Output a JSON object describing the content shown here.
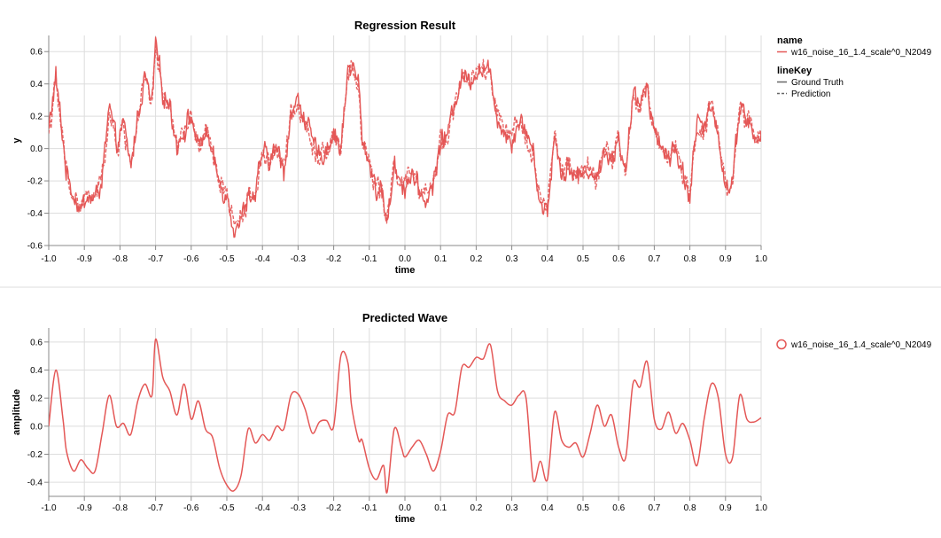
{
  "colors": {
    "series": "#e45756",
    "grid": "#dddddd",
    "axis": "#888888",
    "legend_line": "#666666"
  },
  "chart_data": [
    {
      "type": "line",
      "title": "Regression Result",
      "xlabel": "time",
      "ylabel": "y",
      "xlim": [
        -1.0,
        1.0
      ],
      "ylim": [
        -0.6,
        0.7
      ],
      "x_ticks": [
        -1.0,
        -0.9,
        -0.8,
        -0.7,
        -0.6,
        -0.5,
        -0.4,
        -0.3,
        -0.2,
        -0.1,
        0.0,
        0.1,
        0.2,
        0.3,
        0.4,
        0.5,
        0.6,
        0.7,
        0.8,
        0.9,
        1.0
      ],
      "x_tick_labels": [
        "-1.0",
        "-0.9",
        "-0.8",
        "-0.7",
        "-0.6",
        "-0.5",
        "-0.4",
        "-0.3",
        "-0.2",
        "-0.1",
        "0.0",
        "0.1",
        "0.2",
        "0.3",
        "0.4",
        "0.5",
        "0.6",
        "0.7",
        "0.8",
        "0.9",
        "1.0"
      ],
      "y_ticks": [
        -0.6,
        -0.4,
        -0.2,
        0.0,
        0.2,
        0.4,
        0.6
      ],
      "y_tick_labels": [
        "-0.6",
        "-0.4",
        "-0.2",
        "0.0",
        "0.2",
        "0.4",
        "0.6"
      ],
      "grid": true,
      "noisy": true,
      "legend": {
        "placement": "right",
        "groups": [
          {
            "title": "name",
            "items": [
              {
                "label": "w16_noise_16_1.4_scale^0_N2049",
                "symbol": "line",
                "color": "#e45756"
              }
            ]
          },
          {
            "title": "lineKey",
            "items": [
              {
                "label": "Ground Truth",
                "symbol": "solid-line",
                "color": "#666666"
              },
              {
                "label": "Prediction",
                "symbol": "dashed-line",
                "color": "#666666"
              }
            ]
          }
        ]
      },
      "series": [
        {
          "name": "w16_noise_16_1.4_scale^0_N2049",
          "lineKey": "Ground Truth",
          "x": [
            -1.0,
            -0.98,
            -0.96,
            -0.95,
            -0.93,
            -0.91,
            -0.89,
            -0.87,
            -0.85,
            -0.83,
            -0.81,
            -0.79,
            -0.77,
            -0.75,
            -0.73,
            -0.71,
            -0.7,
            -0.68,
            -0.66,
            -0.64,
            -0.62,
            -0.6,
            -0.58,
            -0.56,
            -0.54,
            -0.52,
            -0.5,
            -0.48,
            -0.46,
            -0.44,
            -0.42,
            -0.4,
            -0.38,
            -0.36,
            -0.34,
            -0.32,
            -0.3,
            -0.28,
            -0.26,
            -0.24,
            -0.22,
            -0.2,
            -0.18,
            -0.16,
            -0.15,
            -0.13,
            -0.12,
            -0.1,
            -0.08,
            -0.06,
            -0.05,
            -0.03,
            -0.01,
            0.0,
            0.02,
            0.04,
            0.06,
            0.08,
            0.1,
            0.12,
            0.14,
            0.16,
            0.18,
            0.2,
            0.22,
            0.24,
            0.26,
            0.28,
            0.3,
            0.32,
            0.34,
            0.36,
            0.38,
            0.4,
            0.42,
            0.44,
            0.46,
            0.48,
            0.5,
            0.52,
            0.54,
            0.56,
            0.58,
            0.6,
            0.62,
            0.64,
            0.66,
            0.68,
            0.7,
            0.72,
            0.74,
            0.76,
            0.78,
            0.8,
            0.82,
            0.84,
            0.86,
            0.88,
            0.9,
            0.92,
            0.94,
            0.96,
            0.98,
            1.0
          ],
          "y": [
            0.12,
            0.44,
            0.05,
            -0.15,
            -0.28,
            -0.38,
            -0.3,
            -0.32,
            -0.18,
            0.25,
            0.02,
            0.15,
            -0.12,
            0.2,
            0.45,
            0.26,
            0.65,
            0.35,
            0.27,
            0.02,
            0.12,
            0.2,
            0.0,
            0.12,
            -0.05,
            -0.22,
            -0.28,
            -0.48,
            -0.45,
            -0.28,
            -0.3,
            -0.02,
            -0.08,
            0.0,
            -0.14,
            0.22,
            0.29,
            0.2,
            0.03,
            -0.05,
            0.0,
            0.1,
            0.0,
            0.49,
            0.52,
            0.4,
            0.05,
            -0.08,
            -0.25,
            -0.3,
            -0.48,
            -0.1,
            -0.2,
            -0.24,
            -0.15,
            -0.28,
            -0.32,
            -0.22,
            0.05,
            0.08,
            0.3,
            0.45,
            0.43,
            0.48,
            0.5,
            0.45,
            0.2,
            0.1,
            0.05,
            0.18,
            0.12,
            -0.02,
            -0.35,
            -0.38,
            0.08,
            -0.15,
            -0.1,
            -0.18,
            -0.15,
            -0.12,
            -0.2,
            0.02,
            -0.1,
            0.08,
            -0.18,
            0.32,
            0.28,
            0.42,
            0.1,
            0.02,
            -0.05,
            0.0,
            -0.15,
            -0.3,
            0.18,
            0.1,
            0.3,
            0.1,
            -0.25,
            -0.2,
            0.28,
            0.2,
            0.05,
            0.05
          ]
        },
        {
          "name": "w16_noise_16_1.4_scale^0_N2049",
          "lineKey": "Prediction",
          "x": [
            -1.0,
            -0.98,
            -0.96,
            -0.95,
            -0.93,
            -0.91,
            -0.89,
            -0.87,
            -0.85,
            -0.83,
            -0.81,
            -0.79,
            -0.77,
            -0.75,
            -0.73,
            -0.71,
            -0.7,
            -0.68,
            -0.66,
            -0.64,
            -0.62,
            -0.6,
            -0.58,
            -0.56,
            -0.54,
            -0.52,
            -0.5,
            -0.48,
            -0.46,
            -0.44,
            -0.42,
            -0.4,
            -0.38,
            -0.36,
            -0.34,
            -0.32,
            -0.3,
            -0.28,
            -0.26,
            -0.24,
            -0.22,
            -0.2,
            -0.18,
            -0.16,
            -0.15,
            -0.13,
            -0.12,
            -0.1,
            -0.08,
            -0.06,
            -0.05,
            -0.03,
            -0.01,
            0.0,
            0.02,
            0.04,
            0.06,
            0.08,
            0.1,
            0.12,
            0.14,
            0.16,
            0.18,
            0.2,
            0.22,
            0.24,
            0.26,
            0.28,
            0.3,
            0.32,
            0.34,
            0.36,
            0.38,
            0.4,
            0.42,
            0.44,
            0.46,
            0.48,
            0.5,
            0.52,
            0.54,
            0.56,
            0.58,
            0.6,
            0.62,
            0.64,
            0.66,
            0.68,
            0.7,
            0.72,
            0.74,
            0.76,
            0.78,
            0.8,
            0.82,
            0.84,
            0.86,
            0.88,
            0.9,
            0.92,
            0.94,
            0.96,
            0.98,
            1.0
          ],
          "y": [
            0.1,
            0.4,
            0.04,
            -0.16,
            -0.3,
            -0.36,
            -0.28,
            -0.31,
            -0.17,
            0.22,
            0.0,
            0.14,
            -0.1,
            0.19,
            0.42,
            0.24,
            0.62,
            0.33,
            0.25,
            0.01,
            0.12,
            0.18,
            0.0,
            0.1,
            -0.05,
            -0.2,
            -0.26,
            -0.46,
            -0.42,
            -0.3,
            -0.28,
            -0.02,
            -0.07,
            0.0,
            -0.13,
            0.2,
            0.25,
            0.2,
            0.02,
            -0.04,
            0.0,
            0.09,
            0.0,
            0.46,
            0.5,
            0.38,
            0.04,
            -0.08,
            -0.24,
            -0.3,
            -0.46,
            -0.1,
            -0.2,
            -0.22,
            -0.14,
            -0.28,
            -0.3,
            -0.2,
            0.05,
            0.08,
            0.28,
            0.42,
            0.42,
            0.46,
            0.48,
            0.44,
            0.2,
            0.1,
            0.06,
            0.16,
            0.1,
            -0.03,
            -0.34,
            -0.36,
            0.08,
            -0.14,
            -0.1,
            -0.17,
            -0.15,
            -0.12,
            -0.19,
            0.02,
            -0.09,
            0.08,
            -0.18,
            0.3,
            0.26,
            0.4,
            0.1,
            0.02,
            -0.05,
            0.0,
            -0.14,
            -0.28,
            0.16,
            0.1,
            0.3,
            0.1,
            -0.24,
            -0.2,
            0.26,
            0.2,
            0.05,
            0.05
          ]
        }
      ]
    },
    {
      "type": "line",
      "title": "Predicted Wave",
      "xlabel": "time",
      "ylabel": "amplitude",
      "xlim": [
        -1.0,
        1.0
      ],
      "ylim": [
        -0.5,
        0.7
      ],
      "x_ticks": [
        -1.0,
        -0.9,
        -0.8,
        -0.7,
        -0.6,
        -0.5,
        -0.4,
        -0.3,
        -0.2,
        -0.1,
        0.0,
        0.1,
        0.2,
        0.3,
        0.4,
        0.5,
        0.6,
        0.7,
        0.8,
        0.9,
        1.0
      ],
      "x_tick_labels": [
        "-1.0",
        "-0.9",
        "-0.8",
        "-0.7",
        "-0.6",
        "-0.5",
        "-0.4",
        "-0.3",
        "-0.2",
        "-0.1",
        "0.0",
        "0.1",
        "0.2",
        "0.3",
        "0.4",
        "0.5",
        "0.6",
        "0.7",
        "0.8",
        "0.9",
        "1.0"
      ],
      "y_ticks": [
        -0.4,
        -0.2,
        0.0,
        0.2,
        0.4,
        0.6
      ],
      "y_tick_labels": [
        "-0.4",
        "-0.2",
        "0.0",
        "0.2",
        "0.4",
        "0.6"
      ],
      "grid": true,
      "noisy": false,
      "legend": {
        "placement": "right",
        "groups": [
          {
            "title": "",
            "items": [
              {
                "label": "w16_noise_16_1.4_scale^0_N2049",
                "symbol": "circle",
                "color": "#e45756"
              }
            ]
          }
        ]
      },
      "series": [
        {
          "name": "w16_noise_16_1.4_scale^0_N2049",
          "x": [
            -1.0,
            -0.98,
            -0.96,
            -0.95,
            -0.93,
            -0.91,
            -0.89,
            -0.87,
            -0.85,
            -0.83,
            -0.81,
            -0.79,
            -0.77,
            -0.75,
            -0.73,
            -0.71,
            -0.7,
            -0.68,
            -0.66,
            -0.64,
            -0.62,
            -0.6,
            -0.58,
            -0.56,
            -0.54,
            -0.52,
            -0.5,
            -0.48,
            -0.46,
            -0.44,
            -0.42,
            -0.4,
            -0.38,
            -0.36,
            -0.34,
            -0.32,
            -0.3,
            -0.28,
            -0.26,
            -0.24,
            -0.22,
            -0.2,
            -0.18,
            -0.16,
            -0.15,
            -0.13,
            -0.12,
            -0.1,
            -0.08,
            -0.06,
            -0.05,
            -0.03,
            -0.01,
            0.0,
            0.02,
            0.04,
            0.06,
            0.08,
            0.1,
            0.12,
            0.14,
            0.16,
            0.18,
            0.2,
            0.22,
            0.24,
            0.26,
            0.28,
            0.3,
            0.32,
            0.34,
            0.36,
            0.38,
            0.4,
            0.42,
            0.44,
            0.46,
            0.48,
            0.5,
            0.52,
            0.54,
            0.56,
            0.58,
            0.6,
            0.62,
            0.64,
            0.66,
            0.68,
            0.7,
            0.72,
            0.74,
            0.76,
            0.78,
            0.8,
            0.82,
            0.84,
            0.86,
            0.88,
            0.9,
            0.92,
            0.94,
            0.96,
            0.98,
            1.0
          ],
          "y": [
            0.0,
            0.4,
            0.05,
            -0.18,
            -0.32,
            -0.24,
            -0.3,
            -0.32,
            -0.05,
            0.22,
            0.0,
            0.02,
            -0.06,
            0.18,
            0.3,
            0.22,
            0.62,
            0.35,
            0.25,
            0.08,
            0.3,
            0.05,
            0.18,
            -0.02,
            -0.08,
            -0.3,
            -0.42,
            -0.46,
            -0.35,
            -0.02,
            -0.12,
            -0.06,
            -0.1,
            0.0,
            -0.02,
            0.22,
            0.23,
            0.12,
            -0.05,
            0.03,
            0.04,
            0.0,
            0.5,
            0.45,
            0.15,
            -0.1,
            -0.1,
            -0.3,
            -0.38,
            -0.28,
            -0.47,
            -0.02,
            -0.15,
            -0.22,
            -0.15,
            -0.1,
            -0.2,
            -0.32,
            -0.18,
            0.08,
            0.1,
            0.42,
            0.42,
            0.49,
            0.48,
            0.58,
            0.25,
            0.18,
            0.15,
            0.22,
            0.2,
            -0.38,
            -0.25,
            -0.38,
            0.1,
            -0.1,
            -0.15,
            -0.12,
            -0.22,
            -0.05,
            0.15,
            0.0,
            0.08,
            -0.15,
            -0.22,
            0.3,
            0.28,
            0.46,
            0.05,
            -0.02,
            0.1,
            -0.05,
            0.02,
            -0.1,
            -0.28,
            0.05,
            0.3,
            0.2,
            -0.2,
            -0.22,
            0.22,
            0.05,
            0.03,
            0.06
          ]
        }
      ]
    }
  ]
}
